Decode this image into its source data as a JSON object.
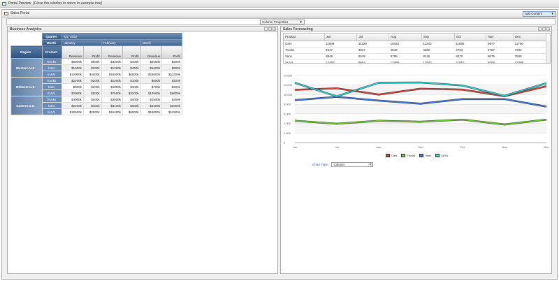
{
  "window": {
    "title": "Portal Preview",
    "hint": "[Close this window to return to example tree]"
  },
  "portal": {
    "title": "Sales Portal",
    "add_content": "Add Content",
    "column_properties": "Column Properties"
  },
  "analytics": {
    "title": "Business Analytics",
    "quarter_label": "Quarter",
    "quarter": "Q1, 2002",
    "month_label": "Month",
    "months": [
      "January",
      "February",
      "March"
    ],
    "region_label": "Region",
    "product_label": "Product",
    "measures": [
      "Revenue",
      "Profit"
    ],
    "regions": [
      {
        "name": "Western U.S.",
        "rows": [
          {
            "product": "Trucks",
            "values": [
              "$5000k",
              "$500k",
              "$4200k",
              "$400k",
              "$2500k",
              "$200k"
            ]
          },
          {
            "product": "Cars",
            "values": [
              "$1000k",
              "$200k",
              "$1200k",
              "$450k",
              "$1600k",
              "$900k"
            ]
          },
          {
            "product": "SUVs",
            "values": [
              "$12000k",
              "$4400k",
              "$16000k",
              "$6000k",
              "$22000k",
              "$11200k"
            ]
          }
        ]
      },
      {
        "name": "Midwest U.S.",
        "rows": [
          {
            "product": "Trucks",
            "values": [
              "$2200k",
              "$200k",
              "$1200k",
              "$100k",
              "$600k",
              "$100k"
            ]
          },
          {
            "product": "Cars",
            "values": [
              "$800k",
              "$200k",
              "$1000k",
              "$300k",
              "$700k",
              "$200k"
            ]
          },
          {
            "product": "SUVs",
            "values": [
              "$2000k",
              "$500k",
              "$7500k",
              "$3200k",
              "$13500k",
              "$6600k"
            ]
          }
        ]
      },
      {
        "name": "Eastern U.S.",
        "rows": [
          {
            "product": "Trucks",
            "values": [
              "$4000k",
              "$400k",
              "$3500k",
              "$400k",
              "$1500k",
              "$200k"
            ]
          },
          {
            "product": "Cars",
            "values": [
              "$2200k",
              "$400k",
              "$3100k",
              "$600k",
              "$4400k",
              "$2000k"
            ]
          },
          {
            "product": "SUVs",
            "values": [
              "$10500k",
              "$2500k",
              "$16400k",
              "$6500k",
              "$19000k",
              "$11500k"
            ]
          }
        ]
      }
    ]
  },
  "forecast": {
    "title": "Sales Forecasting",
    "columns": [
      "Product",
      "Jun",
      "Jul",
      "Aug",
      "Sep",
      "Oct",
      "Nov",
      "Dec"
    ],
    "rows": [
      [
        "Cars",
        "11009",
        "11320",
        "10022",
        "11243",
        "11056",
        "9677",
        "11760"
      ],
      [
        "Trucks",
        "4547",
        "3937",
        "4548",
        "4350",
        "4793",
        "3787",
        "4792"
      ],
      [
        "Vans",
        "8846",
        "9538",
        "8758",
        "8126",
        "9070",
        "9075",
        "7508"
      ],
      [
        "SUVs",
        "12463",
        "9654",
        "12495",
        "12542",
        "11910",
        "9759",
        "12398"
      ]
    ],
    "chart_type_label": "Chart Type :",
    "chart_type": "Column"
  },
  "chart_data": {
    "type": "line",
    "categories": [
      "Jun",
      "Jul",
      "Aug",
      "Sep",
      "Oct",
      "Nov",
      "Dec"
    ],
    "ylim": [
      0,
      14000
    ],
    "yticks": [
      "0",
      "2,000",
      "4,000",
      "6,000",
      "8,000",
      "10,000",
      "12,000",
      "14,000"
    ],
    "grid": true,
    "legend": "bottom",
    "series": [
      {
        "name": "Cars",
        "color": "#d9473a",
        "values": [
          11009,
          11320,
          10022,
          11243,
          11056,
          9677,
          11760
        ]
      },
      {
        "name": "Trucks",
        "color": "#6fce2a",
        "values": [
          4547,
          3937,
          4548,
          4350,
          4793,
          3787,
          4792
        ]
      },
      {
        "name": "Vans",
        "color": "#3f7ae0",
        "values": [
          8846,
          9538,
          8758,
          8126,
          9070,
          9075,
          7508
        ]
      },
      {
        "name": "SUVs",
        "color": "#2fd3d3",
        "values": [
          12463,
          9654,
          12495,
          12542,
          11910,
          9759,
          12398
        ]
      }
    ]
  }
}
